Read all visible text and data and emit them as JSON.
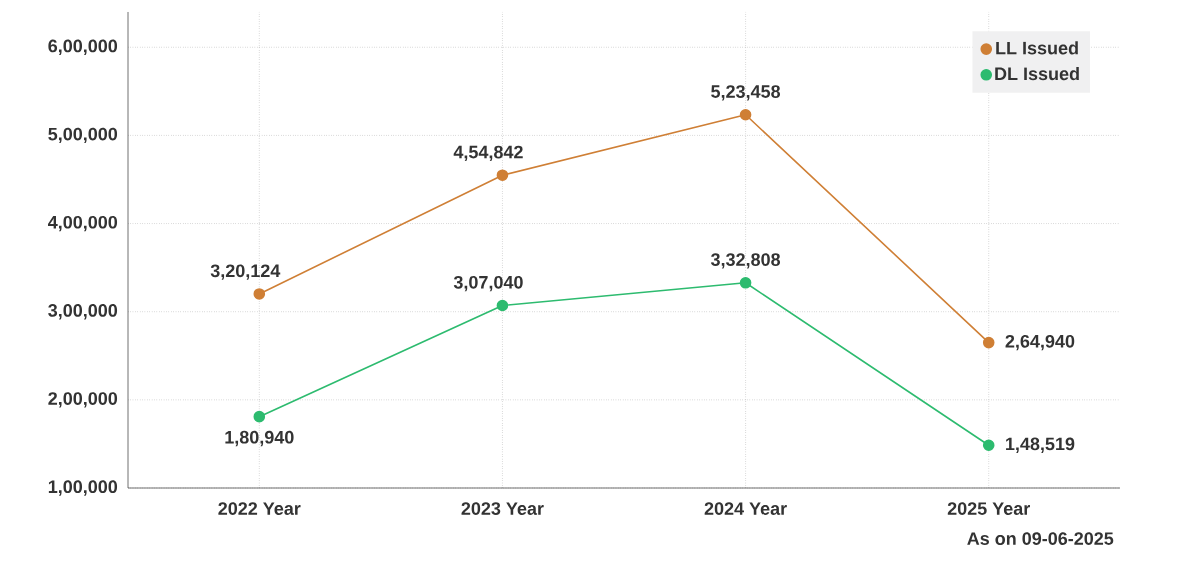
{
  "chart_data": {
    "type": "line",
    "categories": [
      "2022 Year",
      "2023 Year",
      "2024 Year",
      "2025 Year"
    ],
    "series": [
      {
        "name": "LL Issued",
        "color": "#cf7f35",
        "values": [
          320124,
          454842,
          523458,
          264940
        ],
        "value_labels": [
          "3,20,124",
          "4,54,842",
          "5,23,458",
          "2,64,940"
        ]
      },
      {
        "name": "DL Issued",
        "color": "#2dbb6f",
        "values": [
          180940,
          307040,
          332808,
          148519
        ],
        "value_labels": [
          "1,80,940",
          "3,07,040",
          "3,32,808",
          "1,48,519"
        ]
      }
    ],
    "ylim": [
      100000,
      640000
    ],
    "yticks": [
      {
        "value": 100000,
        "label": "1,00,000"
      },
      {
        "value": 200000,
        "label": "2,00,000"
      },
      {
        "value": 300000,
        "label": "3,00,000"
      },
      {
        "value": 400000,
        "label": "4,00,000"
      },
      {
        "value": 500000,
        "label": "5,00,000"
      },
      {
        "value": 600000,
        "label": "6,00,000"
      }
    ],
    "grid": true,
    "legend": "top right",
    "marker": "circle",
    "line_style": "solid",
    "annotations": [
      "As on 09-06-2025"
    ]
  }
}
